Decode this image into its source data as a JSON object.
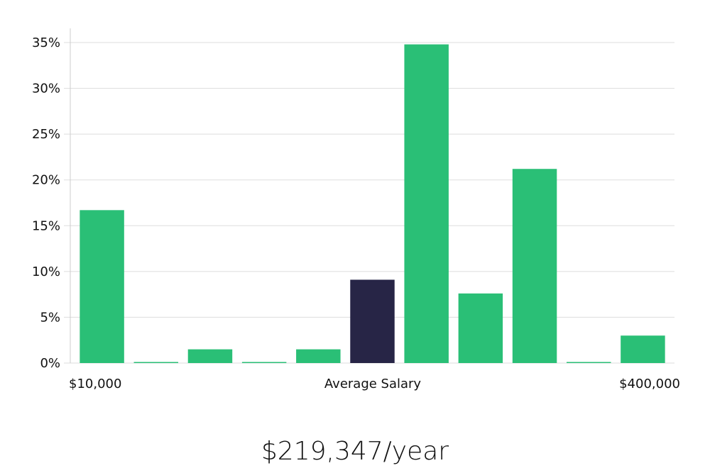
{
  "chart_data": {
    "type": "bar",
    "y_ticks": [
      "0%",
      "5%",
      "10%",
      "15%",
      "20%",
      "25%",
      "30%",
      "35%"
    ],
    "ylim": [
      0,
      35
    ],
    "values": [
      16.7,
      0,
      1.5,
      0,
      1.5,
      9.1,
      34.8,
      7.6,
      21.2,
      0,
      3.0
    ],
    "highlight_index": 5,
    "x_start_label": "$10,000",
    "x_mid_label": "Average Salary",
    "x_end_label": "$400,000",
    "grid": true,
    "bar_color": "#2abf76",
    "highlight_color": "#272546",
    "grid_color": "#dddddd"
  },
  "average_salary": "$219,347/year"
}
